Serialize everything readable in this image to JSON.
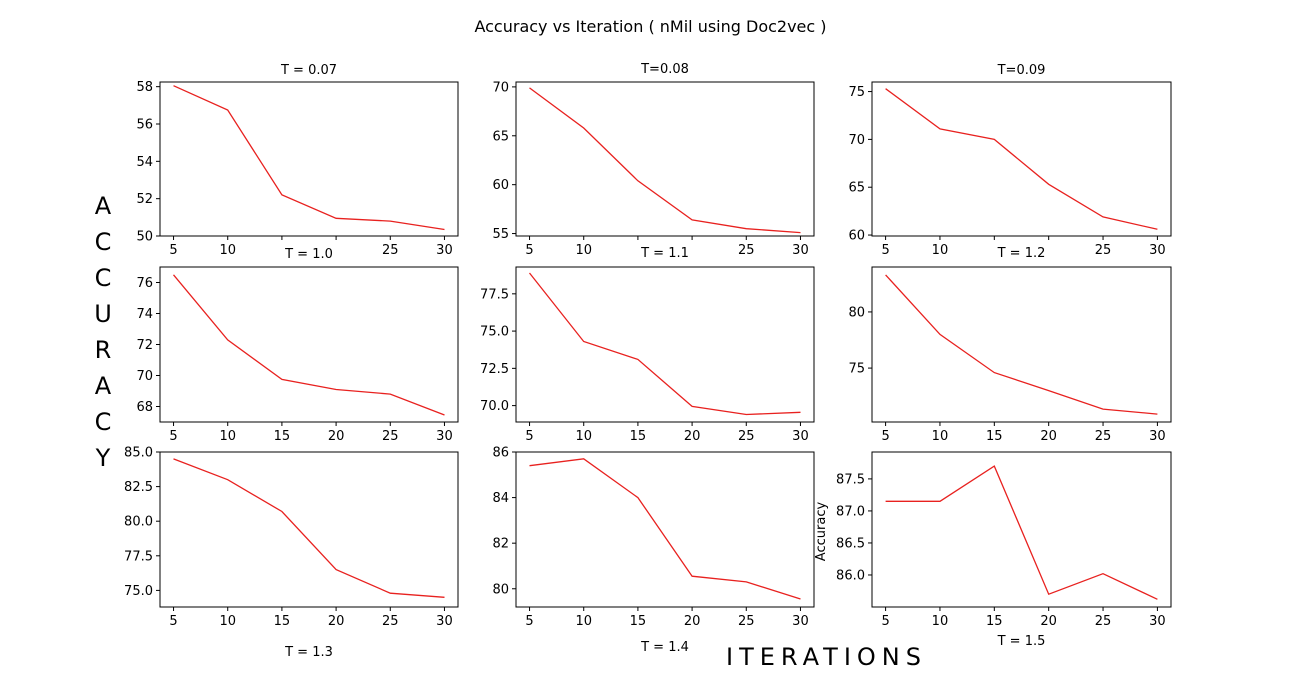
{
  "title": "Accuracy vs Iteration ( nMil using Doc2vec )",
  "side_label": "ACCURACY",
  "bottom_label": "ITERATIONS",
  "series_color": "#e8211f",
  "chart_data": [
    {
      "type": "line",
      "title": "T = 0.07",
      "x": [
        5,
        10,
        15,
        20,
        25,
        30
      ],
      "y": [
        58.05,
        56.75,
        52.2,
        50.95,
        50.8,
        50.35
      ],
      "ylim": [
        50,
        58.25
      ],
      "yticks": [
        "50",
        "52",
        "54",
        "56",
        "58"
      ],
      "xticks": [
        "5",
        "10",
        "",
        "",
        "25",
        "30"
      ],
      "ylabel": ""
    },
    {
      "type": "line",
      "title": "T=0.08",
      "x": [
        5,
        10,
        15,
        20,
        25,
        30
      ],
      "y": [
        69.9,
        65.8,
        60.4,
        56.4,
        55.5,
        55.1
      ],
      "ylim": [
        54.75,
        70.5
      ],
      "yticks": [
        "55",
        "60",
        "65",
        "70"
      ],
      "xticks": [
        "5",
        "10",
        "",
        "",
        "25",
        "30"
      ],
      "ylabel": ""
    },
    {
      "type": "line",
      "title": "T=0.09",
      "x": [
        5,
        10,
        15,
        20,
        25,
        30
      ],
      "y": [
        75.3,
        71.1,
        70.0,
        65.3,
        61.9,
        60.6
      ],
      "ylim": [
        59.9,
        76.0
      ],
      "yticks": [
        "60",
        "65",
        "70",
        "75"
      ],
      "xticks": [
        "5",
        "10",
        "",
        "",
        "25",
        "30"
      ],
      "ylabel": ""
    },
    {
      "type": "line",
      "title": "T = 1.0",
      "x": [
        5,
        10,
        15,
        20,
        25,
        30
      ],
      "y": [
        76.5,
        72.3,
        69.75,
        69.1,
        68.8,
        67.45
      ],
      "ylim": [
        67.0,
        77.0
      ],
      "yticks": [
        "68",
        "70",
        "72",
        "74",
        "76"
      ],
      "xticks": [
        "5",
        "10",
        "15",
        "20",
        "25",
        "30"
      ],
      "ylabel": ""
    },
    {
      "type": "line",
      "title": "T = 1.1",
      "x": [
        5,
        10,
        15,
        20,
        25,
        30
      ],
      "y": [
        78.9,
        74.3,
        73.1,
        69.95,
        69.4,
        69.55
      ],
      "ylim": [
        68.9,
        79.3
      ],
      "yticks": [
        "70.0",
        "72.5",
        "75.0",
        "77.5"
      ],
      "xticks": [
        "5",
        "10",
        "15",
        "20",
        "25",
        "30"
      ],
      "ylabel": ""
    },
    {
      "type": "line",
      "title": "T = 1.2",
      "x": [
        5,
        10,
        15,
        20,
        25,
        30
      ],
      "y": [
        83.3,
        78.0,
        74.6,
        73.0,
        71.35,
        70.9
      ],
      "ylim": [
        70.2,
        84.0
      ],
      "yticks": [
        "75",
        "80"
      ],
      "xticks": [
        "5",
        "10",
        "15",
        "20",
        "25",
        "30"
      ],
      "ylabel": ""
    },
    {
      "type": "line",
      "title": "T = 1.3",
      "x": [
        5,
        10,
        15,
        20,
        25,
        30
      ],
      "y": [
        84.5,
        83.0,
        80.7,
        76.5,
        74.8,
        74.5
      ],
      "ylim": [
        73.8,
        85.0
      ],
      "yticks": [
        "75.0",
        "77.5",
        "80.0",
        "82.5",
        "85.0"
      ],
      "xticks": [
        "5",
        "10",
        "15",
        "20",
        "25",
        "30"
      ],
      "ylabel": ""
    },
    {
      "type": "line",
      "title": "T = 1.4",
      "x": [
        5,
        10,
        15,
        20,
        25,
        30
      ],
      "y": [
        85.4,
        85.7,
        84.0,
        80.55,
        80.3,
        79.55
      ],
      "ylim": [
        79.2,
        86.0
      ],
      "yticks": [
        "80",
        "82",
        "84",
        "86"
      ],
      "xticks": [
        "5",
        "10",
        "15",
        "20",
        "25",
        "30"
      ],
      "ylabel": ""
    },
    {
      "type": "line",
      "title": "T = 1.5",
      "x": [
        5,
        10,
        15,
        20,
        25,
        30
      ],
      "y": [
        87.15,
        87.15,
        87.7,
        85.7,
        86.02,
        85.62
      ],
      "ylim": [
        85.5,
        87.92
      ],
      "yticks": [
        "86.0",
        "86.5",
        "87.0",
        "87.5"
      ],
      "xticks": [
        "5",
        "10",
        "15",
        "20",
        "25",
        "30"
      ],
      "ylabel": "Accuracy"
    }
  ]
}
